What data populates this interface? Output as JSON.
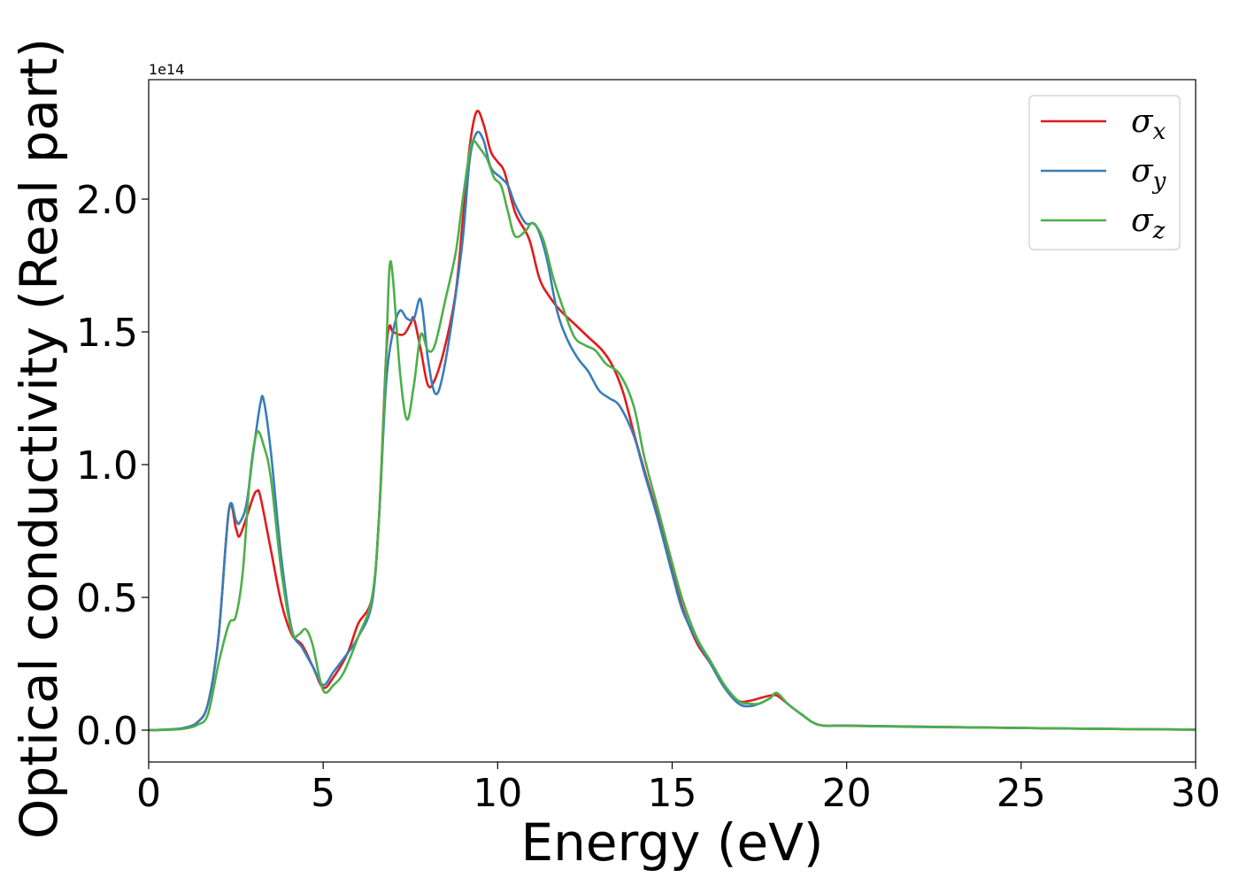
{
  "chart_data": {
    "type": "line",
    "title": "",
    "xlabel": "Energy (eV)",
    "ylabel": "Optical conductivity (Real part)",
    "y_offset_label": "1e14",
    "xlim": [
      0,
      30
    ],
    "ylim": [
      -0.12,
      2.45
    ],
    "x_ticks": [
      0,
      5,
      10,
      15,
      20,
      25,
      30
    ],
    "x_tick_labels": [
      "0",
      "5",
      "10",
      "15",
      "20",
      "25",
      "30"
    ],
    "y_ticks": [
      0.0,
      0.5,
      1.0,
      1.5,
      2.0
    ],
    "y_tick_labels": [
      "0.0",
      "0.5",
      "1.0",
      "1.5",
      "2.0"
    ],
    "grid": false,
    "legend_position": "top-right",
    "series": [
      {
        "name": "σx",
        "label_base": "σ",
        "label_sub": "x",
        "color": "#e41a1c",
        "points": [
          [
            0,
            0
          ],
          [
            0.5,
            0.002
          ],
          [
            1.0,
            0.008
          ],
          [
            1.4,
            0.03
          ],
          [
            1.7,
            0.1
          ],
          [
            2.0,
            0.35
          ],
          [
            2.3,
            0.83
          ],
          [
            2.5,
            0.76
          ],
          [
            2.6,
            0.73
          ],
          [
            2.8,
            0.8
          ],
          [
            3.0,
            0.88
          ],
          [
            3.1,
            0.9
          ],
          [
            3.2,
            0.88
          ],
          [
            3.5,
            0.68
          ],
          [
            3.8,
            0.48
          ],
          [
            4.1,
            0.36
          ],
          [
            4.4,
            0.32
          ],
          [
            4.7,
            0.24
          ],
          [
            5.0,
            0.16
          ],
          [
            5.3,
            0.2
          ],
          [
            5.7,
            0.29
          ],
          [
            6.0,
            0.4
          ],
          [
            6.4,
            0.5
          ],
          [
            6.6,
            0.8
          ],
          [
            6.8,
            1.4
          ],
          [
            6.9,
            1.52
          ],
          [
            7.0,
            1.5
          ],
          [
            7.3,
            1.49
          ],
          [
            7.5,
            1.53
          ],
          [
            7.6,
            1.55
          ],
          [
            7.8,
            1.43
          ],
          [
            8.0,
            1.3
          ],
          [
            8.2,
            1.32
          ],
          [
            8.5,
            1.45
          ],
          [
            8.8,
            1.65
          ],
          [
            9.0,
            1.92
          ],
          [
            9.2,
            2.2
          ],
          [
            9.4,
            2.33
          ],
          [
            9.6,
            2.28
          ],
          [
            9.8,
            2.18
          ],
          [
            10.0,
            2.14
          ],
          [
            10.2,
            2.1
          ],
          [
            10.5,
            1.95
          ],
          [
            10.9,
            1.85
          ],
          [
            11.2,
            1.7
          ],
          [
            11.5,
            1.63
          ],
          [
            11.8,
            1.58
          ],
          [
            12.2,
            1.53
          ],
          [
            12.6,
            1.48
          ],
          [
            13.0,
            1.43
          ],
          [
            13.3,
            1.37
          ],
          [
            13.6,
            1.27
          ],
          [
            13.9,
            1.12
          ],
          [
            14.2,
            0.98
          ],
          [
            14.6,
            0.8
          ],
          [
            15.0,
            0.6
          ],
          [
            15.3,
            0.46
          ],
          [
            15.7,
            0.33
          ],
          [
            16.1,
            0.25
          ],
          [
            16.5,
            0.16
          ],
          [
            16.9,
            0.11
          ],
          [
            17.2,
            0.11
          ],
          [
            17.5,
            0.12
          ],
          [
            17.8,
            0.13
          ],
          [
            18.0,
            0.13
          ],
          [
            18.3,
            0.1
          ],
          [
            18.7,
            0.06
          ],
          [
            19.2,
            0.02
          ],
          [
            20,
            0.017
          ],
          [
            22,
            0.013
          ],
          [
            25,
            0.008
          ],
          [
            28,
            0.004
          ],
          [
            30,
            0.002
          ]
        ]
      },
      {
        "name": "σy",
        "label_base": "σ",
        "label_sub": "y",
        "color": "#377eb8",
        "points": [
          [
            0,
            0
          ],
          [
            0.5,
            0.002
          ],
          [
            1.0,
            0.008
          ],
          [
            1.4,
            0.03
          ],
          [
            1.7,
            0.1
          ],
          [
            2.0,
            0.35
          ],
          [
            2.3,
            0.83
          ],
          [
            2.5,
            0.79
          ],
          [
            2.6,
            0.78
          ],
          [
            2.8,
            0.85
          ],
          [
            3.0,
            1.05
          ],
          [
            3.2,
            1.23
          ],
          [
            3.3,
            1.24
          ],
          [
            3.5,
            1.05
          ],
          [
            3.8,
            0.65
          ],
          [
            4.1,
            0.38
          ],
          [
            4.4,
            0.31
          ],
          [
            4.7,
            0.24
          ],
          [
            5.0,
            0.17
          ],
          [
            5.3,
            0.22
          ],
          [
            5.7,
            0.29
          ],
          [
            6.0,
            0.35
          ],
          [
            6.4,
            0.48
          ],
          [
            6.6,
            0.8
          ],
          [
            6.8,
            1.3
          ],
          [
            7.0,
            1.5
          ],
          [
            7.2,
            1.58
          ],
          [
            7.4,
            1.55
          ],
          [
            7.6,
            1.55
          ],
          [
            7.8,
            1.62
          ],
          [
            8.0,
            1.4
          ],
          [
            8.2,
            1.27
          ],
          [
            8.4,
            1.32
          ],
          [
            8.7,
            1.55
          ],
          [
            9.0,
            1.85
          ],
          [
            9.2,
            2.15
          ],
          [
            9.4,
            2.25
          ],
          [
            9.6,
            2.22
          ],
          [
            9.8,
            2.12
          ],
          [
            10.1,
            2.08
          ],
          [
            10.3,
            2.05
          ],
          [
            10.5,
            1.98
          ],
          [
            10.8,
            1.91
          ],
          [
            11.1,
            1.9
          ],
          [
            11.4,
            1.78
          ],
          [
            11.7,
            1.58
          ],
          [
            12.0,
            1.47
          ],
          [
            12.3,
            1.4
          ],
          [
            12.6,
            1.35
          ],
          [
            12.9,
            1.28
          ],
          [
            13.2,
            1.25
          ],
          [
            13.5,
            1.22
          ],
          [
            13.9,
            1.11
          ],
          [
            14.2,
            0.97
          ],
          [
            14.6,
            0.79
          ],
          [
            15.0,
            0.59
          ],
          [
            15.3,
            0.45
          ],
          [
            15.7,
            0.34
          ],
          [
            16.1,
            0.25
          ],
          [
            16.5,
            0.16
          ],
          [
            16.9,
            0.1
          ],
          [
            17.2,
            0.09
          ],
          [
            17.5,
            0.1
          ],
          [
            17.8,
            0.12
          ],
          [
            18.0,
            0.14
          ],
          [
            18.3,
            0.1
          ],
          [
            18.7,
            0.06
          ],
          [
            19.2,
            0.02
          ],
          [
            20,
            0.017
          ],
          [
            22,
            0.013
          ],
          [
            25,
            0.008
          ],
          [
            28,
            0.004
          ],
          [
            30,
            0.002
          ]
        ]
      },
      {
        "name": "σz",
        "label_base": "σ",
        "label_sub": "z",
        "color": "#4daf4a",
        "points": [
          [
            0,
            0
          ],
          [
            0.5,
            0.001
          ],
          [
            1.0,
            0.005
          ],
          [
            1.4,
            0.02
          ],
          [
            1.7,
            0.06
          ],
          [
            2.0,
            0.25
          ],
          [
            2.3,
            0.4
          ],
          [
            2.5,
            0.43
          ],
          [
            2.7,
            0.6
          ],
          [
            2.9,
            0.95
          ],
          [
            3.1,
            1.12
          ],
          [
            3.3,
            1.07
          ],
          [
            3.5,
            0.95
          ],
          [
            3.8,
            0.6
          ],
          [
            4.1,
            0.37
          ],
          [
            4.3,
            0.36
          ],
          [
            4.5,
            0.38
          ],
          [
            4.7,
            0.32
          ],
          [
            5.0,
            0.15
          ],
          [
            5.3,
            0.17
          ],
          [
            5.6,
            0.22
          ],
          [
            6.0,
            0.35
          ],
          [
            6.4,
            0.5
          ],
          [
            6.6,
            0.8
          ],
          [
            6.8,
            1.4
          ],
          [
            6.9,
            1.74
          ],
          [
            7.0,
            1.7
          ],
          [
            7.2,
            1.35
          ],
          [
            7.4,
            1.17
          ],
          [
            7.6,
            1.3
          ],
          [
            7.8,
            1.49
          ],
          [
            8.0,
            1.43
          ],
          [
            8.2,
            1.45
          ],
          [
            8.5,
            1.62
          ],
          [
            8.8,
            1.8
          ],
          [
            9.0,
            2.0
          ],
          [
            9.2,
            2.18
          ],
          [
            9.3,
            2.22
          ],
          [
            9.5,
            2.19
          ],
          [
            9.7,
            2.15
          ],
          [
            9.9,
            2.08
          ],
          [
            10.1,
            2.05
          ],
          [
            10.3,
            1.95
          ],
          [
            10.5,
            1.86
          ],
          [
            10.8,
            1.88
          ],
          [
            11.0,
            1.91
          ],
          [
            11.3,
            1.85
          ],
          [
            11.6,
            1.7
          ],
          [
            11.9,
            1.58
          ],
          [
            12.2,
            1.48
          ],
          [
            12.5,
            1.45
          ],
          [
            12.8,
            1.43
          ],
          [
            13.1,
            1.38
          ],
          [
            13.5,
            1.34
          ],
          [
            13.9,
            1.22
          ],
          [
            14.2,
            1.03
          ],
          [
            14.6,
            0.83
          ],
          [
            15.0,
            0.63
          ],
          [
            15.3,
            0.49
          ],
          [
            15.7,
            0.35
          ],
          [
            16.1,
            0.26
          ],
          [
            16.5,
            0.17
          ],
          [
            16.9,
            0.11
          ],
          [
            17.2,
            0.1
          ],
          [
            17.5,
            0.1
          ],
          [
            17.8,
            0.12
          ],
          [
            18.0,
            0.14
          ],
          [
            18.3,
            0.1
          ],
          [
            18.7,
            0.06
          ],
          [
            19.2,
            0.02
          ],
          [
            20,
            0.016
          ],
          [
            22,
            0.012
          ],
          [
            25,
            0.008
          ],
          [
            28,
            0.004
          ],
          [
            30,
            0.002
          ]
        ]
      }
    ]
  }
}
